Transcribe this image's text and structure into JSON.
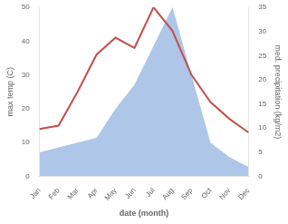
{
  "chart_data": {
    "type": "line",
    "xlabel": "date (month)",
    "ylabel": "max temp (C)",
    "y2label": "med. precipitation (kg/m2)",
    "categories": [
      "Jan",
      "Feb",
      "Mar",
      "Apr",
      "May",
      "Jun",
      "Jul",
      "Aug",
      "Sep",
      "Oct",
      "Nov",
      "Dec"
    ],
    "series": [
      {
        "type": "area",
        "axis": "y2",
        "color": "#aec6e8",
        "values": [
          5,
          6,
          7,
          8,
          14,
          19,
          27,
          35,
          21,
          7,
          4,
          2
        ]
      },
      {
        "type": "line",
        "color": "#c0504d",
        "values": [
          14,
          15,
          25,
          36,
          41,
          38,
          50,
          43,
          30,
          22,
          17,
          13
        ]
      }
    ],
    "ylim": [
      0,
      50
    ],
    "yticks": [
      0,
      10,
      20,
      30,
      40,
      50
    ],
    "y2lim": [
      0,
      35
    ],
    "y2ticks": [
      0,
      5,
      10,
      15,
      20,
      25,
      30,
      35
    ],
    "grid": false
  }
}
